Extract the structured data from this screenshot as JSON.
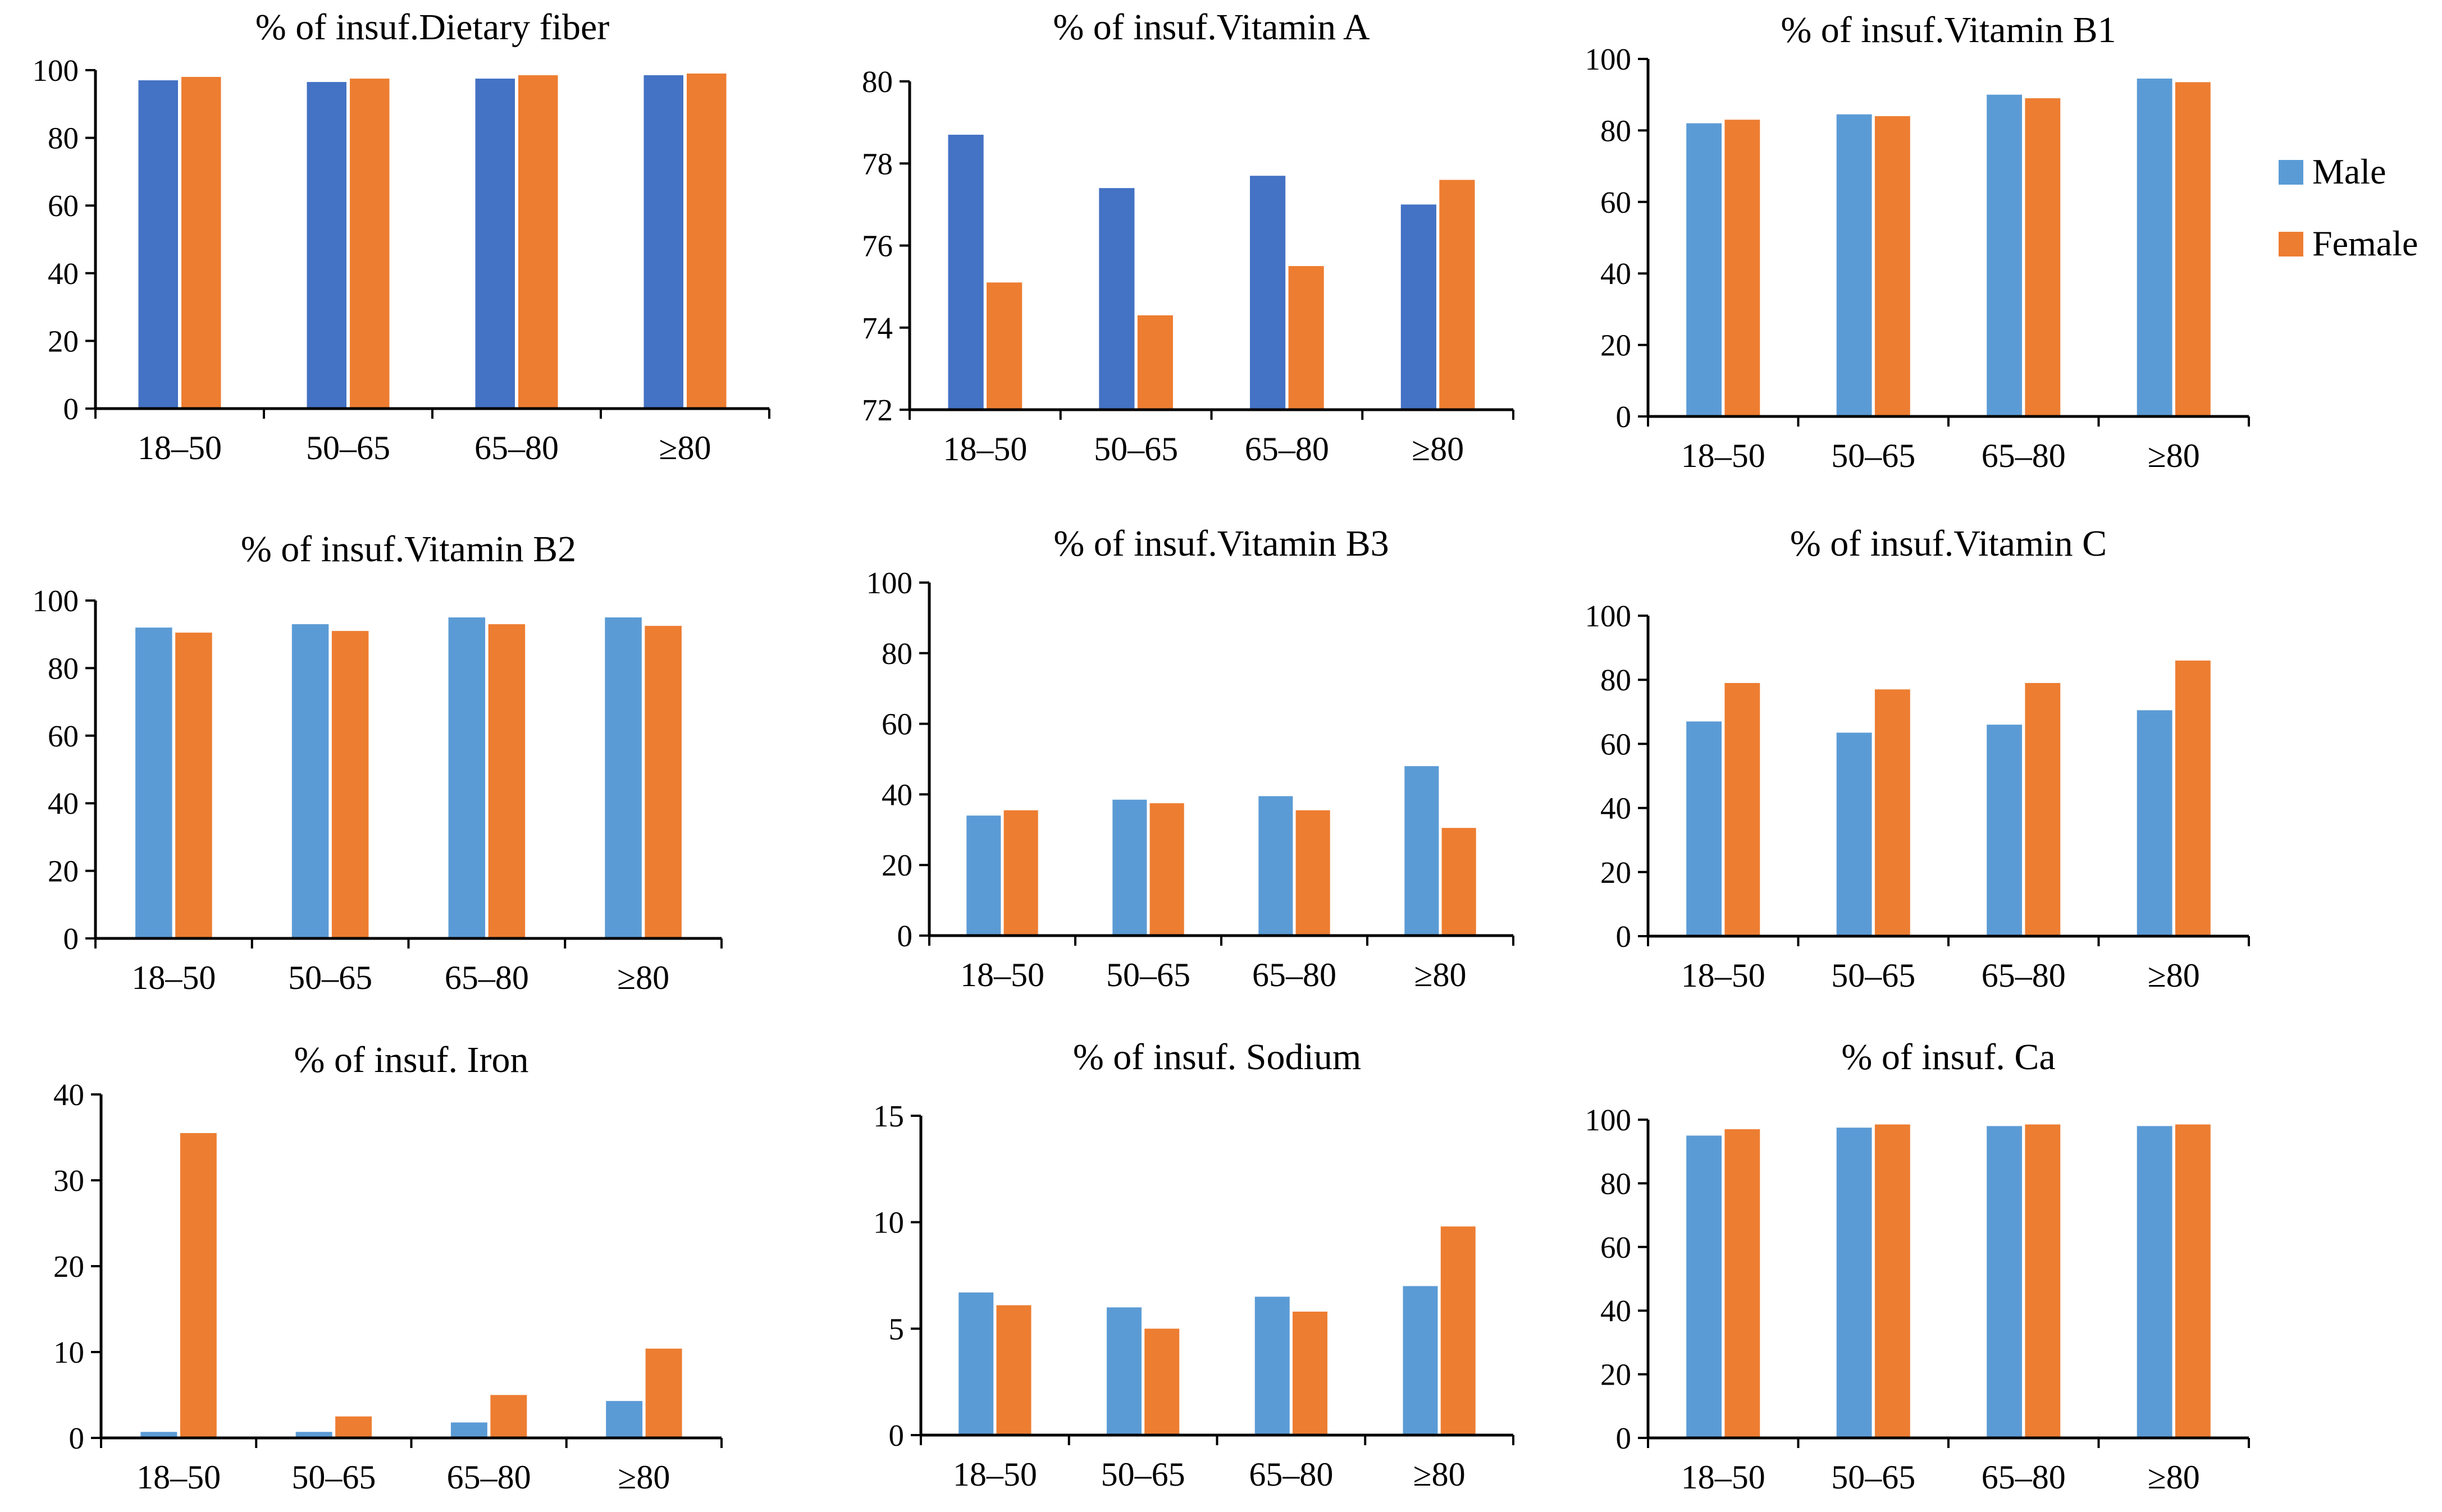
{
  "colors": {
    "male_dark": "#4472C4",
    "male_light": "#5B9BD5",
    "female": "#ED7D31",
    "axis": "#000000"
  },
  "legend": {
    "entries": [
      {
        "label": "Male",
        "color": "#5B9BD5"
      },
      {
        "label": "Female",
        "color": "#ED7D31"
      }
    ]
  },
  "chart_data": [
    {
      "type": "bar",
      "title": "% of insuf.Dietary fiber",
      "categories": [
        "18–50",
        "50–65",
        "65–80",
        "≥80"
      ],
      "ylim": [
        0,
        100
      ],
      "yticks": [
        "0",
        "20",
        "40",
        "60",
        "80",
        "100"
      ],
      "male_color": "#4472C4",
      "series": [
        {
          "name": "Male",
          "values": [
            97,
            96.5,
            97.5,
            98.5
          ]
        },
        {
          "name": "Female",
          "values": [
            98,
            97.5,
            98.5,
            99
          ]
        }
      ]
    },
    {
      "type": "bar",
      "title": "% of insuf.Vitamin A",
      "categories": [
        "18–50",
        "50–65",
        "65–80",
        "≥80"
      ],
      "ylim": [
        72,
        80
      ],
      "yticks": [
        "72",
        "74",
        "76",
        "78",
        "80"
      ],
      "male_color": "#4472C4",
      "series": [
        {
          "name": "Male",
          "values": [
            78.7,
            77.4,
            77.7,
            77.0
          ]
        },
        {
          "name": "Female",
          "values": [
            75.1,
            74.3,
            75.5,
            77.6
          ]
        }
      ]
    },
    {
      "type": "bar",
      "title": "% of insuf.Vitamin B1",
      "categories": [
        "18–50",
        "50–65",
        "65–80",
        "≥80"
      ],
      "ylim": [
        0,
        100
      ],
      "yticks": [
        "0",
        "20",
        "40",
        "60",
        "80",
        "100"
      ],
      "male_color": "#5B9BD5",
      "series": [
        {
          "name": "Male",
          "values": [
            82,
            84.5,
            90,
            94.5
          ]
        },
        {
          "name": "Female",
          "values": [
            83,
            84,
            89,
            93.5
          ]
        }
      ]
    },
    {
      "type": "bar",
      "title": "% of insuf.Vitamin B2",
      "categories": [
        "18–50",
        "50–65",
        "65–80",
        "≥80"
      ],
      "ylim": [
        0,
        100
      ],
      "yticks": [
        "0",
        "20",
        "40",
        "60",
        "80",
        "100"
      ],
      "male_color": "#5B9BD5",
      "series": [
        {
          "name": "Male",
          "values": [
            92,
            93,
            95,
            95
          ]
        },
        {
          "name": "Female",
          "values": [
            90.5,
            91,
            93,
            92.5
          ]
        }
      ]
    },
    {
      "type": "bar",
      "title": "% of insuf.Vitamin B3",
      "categories": [
        "18–50",
        "50–65",
        "65–80",
        "≥80"
      ],
      "ylim": [
        0,
        100
      ],
      "yticks": [
        "0",
        "20",
        "40",
        "60",
        "80",
        "100"
      ],
      "male_color": "#5B9BD5",
      "series": [
        {
          "name": "Male",
          "values": [
            34,
            38.5,
            39.5,
            48
          ]
        },
        {
          "name": "Female",
          "values": [
            35.5,
            37.5,
            35.5,
            30.5
          ]
        }
      ]
    },
    {
      "type": "bar",
      "title": "% of insuf.Vitamin C",
      "categories": [
        "18–50",
        "50–65",
        "65–80",
        "≥80"
      ],
      "ylim": [
        0,
        100
      ],
      "yticks": [
        "0",
        "20",
        "40",
        "60",
        "80",
        "100"
      ],
      "male_color": "#5B9BD5",
      "series": [
        {
          "name": "Male",
          "values": [
            67,
            63.5,
            66,
            70.5
          ]
        },
        {
          "name": "Female",
          "values": [
            79,
            77,
            79,
            86
          ]
        }
      ]
    },
    {
      "type": "bar",
      "title": "% of insuf. Iron",
      "categories": [
        "18–50",
        "50–65",
        "65–80",
        "≥80"
      ],
      "ylim": [
        0,
        40
      ],
      "yticks": [
        "0",
        "10",
        "20",
        "30",
        "40"
      ],
      "male_color": "#5B9BD5",
      "series": [
        {
          "name": "Male",
          "values": [
            0.7,
            0.7,
            1.8,
            4.3
          ]
        },
        {
          "name": "Female",
          "values": [
            35.5,
            2.5,
            5.0,
            10.4
          ]
        }
      ]
    },
    {
      "type": "bar",
      "title": "% of insuf. Sodium",
      "categories": [
        "18–50",
        "50–65",
        "65–80",
        "≥80"
      ],
      "ylim": [
        0,
        15
      ],
      "yticks": [
        "0",
        "5",
        "10",
        "15"
      ],
      "male_color": "#5B9BD5",
      "series": [
        {
          "name": "Male",
          "values": [
            6.7,
            6.0,
            6.5,
            7.0
          ]
        },
        {
          "name": "Female",
          "values": [
            6.1,
            5.0,
            5.8,
            9.8
          ]
        }
      ]
    },
    {
      "type": "bar",
      "title": "% of insuf. Ca",
      "categories": [
        "18–50",
        "50–65",
        "65–80",
        "≥80"
      ],
      "ylim": [
        0,
        100
      ],
      "yticks": [
        "0",
        "20",
        "40",
        "60",
        "80",
        "100"
      ],
      "male_color": "#5B9BD5",
      "series": [
        {
          "name": "Male",
          "values": [
            95,
            97.5,
            98,
            98
          ]
        },
        {
          "name": "Female",
          "values": [
            97,
            98.5,
            98.5,
            98.5
          ]
        }
      ]
    }
  ]
}
